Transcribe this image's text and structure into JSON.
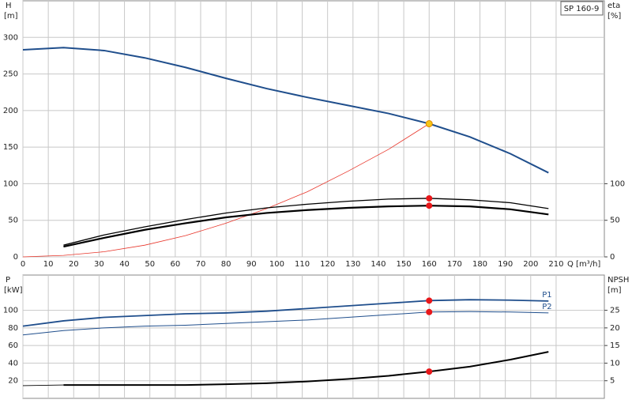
{
  "chart_data": [
    {
      "type": "line",
      "title": "SP 160-9",
      "ylabel": "H",
      "yunit": "[m]",
      "y2label": "eta",
      "y2unit": "[%]",
      "xlabel": "Q [m³/h]",
      "xlim": [
        0,
        229
      ],
      "xticks": [
        0,
        10,
        20,
        30,
        40,
        50,
        60,
        70,
        80,
        90,
        100,
        110,
        120,
        130,
        140,
        150,
        160,
        170,
        180,
        190,
        200,
        210
      ],
      "ylim": [
        0,
        350
      ],
      "yticks": [
        0,
        50,
        100,
        150,
        200,
        250,
        300
      ],
      "y2lim": [
        0,
        350
      ],
      "y2ticks": [
        0,
        50,
        100
      ],
      "grid": true,
      "series": [
        {
          "style": "line",
          "color": "#1f4e8c",
          "width": 2,
          "x": [
            0,
            16,
            32,
            48,
            64,
            80,
            96,
            112,
            128,
            144,
            160,
            176,
            192,
            207
          ],
          "values": [
            283,
            286,
            282,
            272,
            259,
            244,
            230,
            218,
            207,
            196,
            182,
            164,
            141,
            115
          ]
        },
        {
          "style": "line",
          "color": "#e8352a",
          "width": 0.8,
          "x": [
            0,
            16,
            32,
            48,
            64,
            80,
            96,
            112,
            128,
            144,
            160
          ],
          "values": [
            0,
            2,
            7,
            16,
            29,
            46,
            66,
            89,
            117,
            147,
            182
          ]
        },
        {
          "style": "line",
          "color": "#000000",
          "width": 1.3,
          "axis": "y2",
          "x": [
            16,
            32,
            48,
            64,
            80,
            96,
            112,
            128,
            144,
            160,
            176,
            192,
            207
          ],
          "values": [
            16,
            30,
            41,
            51,
            60,
            67,
            72,
            76,
            79,
            80,
            78,
            74,
            66
          ]
        },
        {
          "style": "line",
          "color": "#000000",
          "width": 2.2,
          "axis": "y2",
          "x": [
            16,
            32,
            48,
            64,
            80,
            96,
            112,
            128,
            144,
            160,
            176,
            192,
            207
          ],
          "values": [
            14,
            26,
            37,
            46,
            54,
            60,
            64,
            67,
            69,
            70,
            69,
            65,
            58
          ]
        },
        {
          "style": "point",
          "color": "#f5c518",
          "x": [
            160
          ],
          "values": [
            182
          ]
        },
        {
          "style": "point",
          "color": "#e8171a",
          "axis": "y2",
          "x": [
            160
          ],
          "values": [
            80
          ]
        },
        {
          "style": "point",
          "color": "#e8171a",
          "axis": "y2",
          "x": [
            160
          ],
          "values": [
            70
          ]
        }
      ]
    },
    {
      "type": "line",
      "ylabel": "P",
      "yunit": "[kW]",
      "y2label": "NPSH",
      "y2unit": "[m]",
      "xlim": [
        0,
        229
      ],
      "ylim": [
        0,
        140
      ],
      "yticks": [
        20,
        40,
        60,
        80,
        100
      ],
      "y2lim": [
        0,
        35
      ],
      "y2ticks": [
        5,
        10,
        15,
        20,
        25
      ],
      "grid": true,
      "series": [
        {
          "name": "P1",
          "style": "line",
          "color": "#1f4e8c",
          "width": 1.8,
          "x": [
            0,
            16,
            32,
            48,
            64,
            80,
            96,
            112,
            128,
            144,
            160,
            176,
            192,
            207
          ],
          "values": [
            82,
            88,
            92,
            94,
            96,
            97,
            99,
            102,
            105,
            108,
            111,
            112,
            111.5,
            110.5
          ]
        },
        {
          "name": "P2",
          "style": "line",
          "color": "#1f4e8c",
          "width": 1,
          "x": [
            0,
            16,
            32,
            48,
            64,
            80,
            96,
            112,
            128,
            144,
            160,
            176,
            192,
            207
          ],
          "values": [
            72,
            77,
            80,
            82,
            83,
            85,
            87,
            89,
            92,
            95,
            98,
            98.5,
            98,
            97
          ]
        },
        {
          "style": "line",
          "color": "#000000",
          "width": 0.8,
          "axis": "y2",
          "x": [
            0,
            16
          ],
          "values": [
            3.6,
            3.8
          ]
        },
        {
          "style": "line",
          "color": "#000000",
          "width": 2,
          "axis": "y2",
          "x": [
            16,
            32,
            48,
            64,
            80,
            96,
            112,
            128,
            144,
            160,
            176,
            192,
            207
          ],
          "values": [
            3.8,
            3.8,
            3.8,
            3.8,
            4,
            4.3,
            4.8,
            5.5,
            6.4,
            7.6,
            9,
            11,
            13.2
          ]
        },
        {
          "style": "point",
          "color": "#e8171a",
          "x": [
            160
          ],
          "values": [
            111
          ]
        },
        {
          "style": "point",
          "color": "#e8171a",
          "x": [
            160
          ],
          "values": [
            98
          ]
        },
        {
          "style": "point",
          "color": "#e8171a",
          "axis": "y2",
          "x": [
            160
          ],
          "values": [
            7.6
          ]
        }
      ]
    }
  ]
}
